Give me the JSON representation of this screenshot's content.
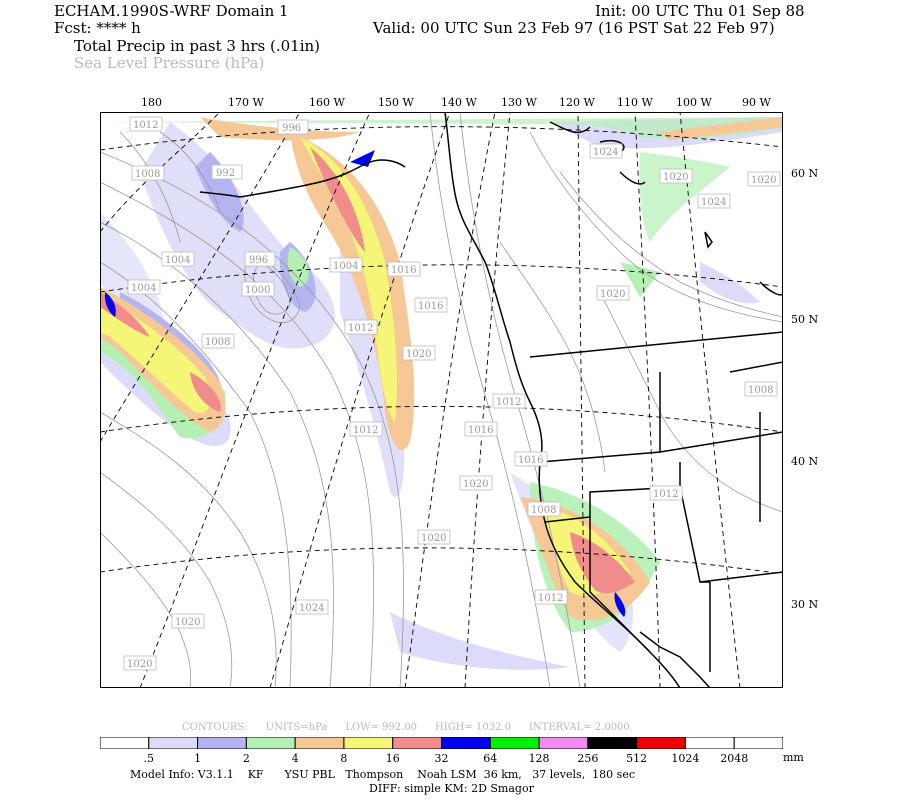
{
  "header": {
    "model": "ECHAM.1990S-WRF Domain 1",
    "fcst": "Fcst: **** h",
    "init": "Init: 00 UTC Thu 01 Sep 88",
    "valid": "Valid: 00 UTC Sun 23 Feb 97 (16 PST Sat 22 Feb 97)",
    "field1": "Total Precip in past 3 hrs (.01in)",
    "field2": "Sea Level Pressure (hPa)"
  },
  "lon_labels": [
    "180",
    "170 W",
    "160 W",
    "150 W",
    "140 W",
    "130 W",
    "120 W",
    "110 W",
    "100 W",
    "90 W"
  ],
  "lat_labels": [
    "60 N",
    "50 N",
    "40 N",
    "30 N"
  ],
  "isobar_labels": [
    "1012",
    "1008",
    "996",
    "992",
    "1004",
    "996",
    "1000",
    "1004",
    "1004",
    "1008",
    "1012",
    "1016",
    "1012",
    "1016",
    "1020",
    "1016",
    "1024",
    "1020",
    "1024",
    "1020",
    "1012",
    "1020",
    "1020",
    "1012",
    "1008",
    "1012",
    "1008",
    "1020",
    "1024",
    "1020",
    "1020",
    "1016"
  ],
  "contours": {
    "label": "CONTOURS:",
    "units": "UNITS=hPa",
    "low": "LOW=   992.00",
    "high": "HIGH=  1032.0",
    "interval": "INTERVAL=    2.0000"
  },
  "colorbar": {
    "labels": [
      ".5",
      "1",
      "2",
      "4",
      "8",
      "16",
      "32",
      "64",
      "128",
      "256",
      "512",
      "1024",
      "2048"
    ],
    "unit": "mm",
    "colors": [
      "#ffffff",
      "#dcdcfa",
      "#b4b4f0",
      "#b4f0b4",
      "#f5c896",
      "#f5f578",
      "#f08c8c",
      "#0000f0",
      "#00f000",
      "#f08cf0",
      "#000000",
      "#f00000",
      "#ffffff",
      "#ffffff"
    ]
  },
  "footer": {
    "line1": "Model Info: V3.1.1    KF      YSU PBL   Thompson    Noah LSM  36 km,   37 levels,  180 sec",
    "line2": "DIFF: simple KM: 2D Smagor"
  },
  "precip_colors": {
    "light": "#dcdcfa",
    "lavender": "#b4b4f0",
    "green": "#b4f0b4",
    "orange": "#f5c896",
    "yellow": "#f5f578",
    "red": "#f08c8c",
    "blue": "#0000f0"
  }
}
